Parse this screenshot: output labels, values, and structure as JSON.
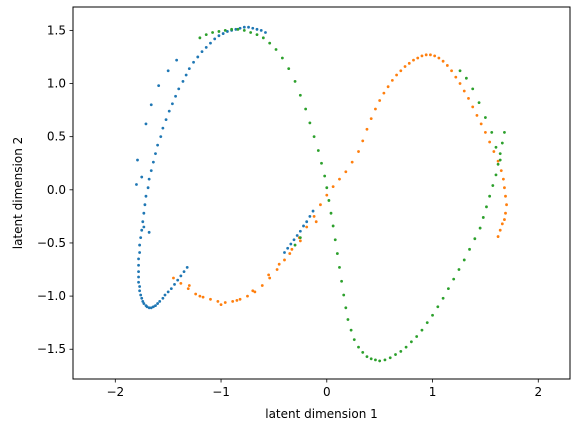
{
  "chart_data": {
    "type": "scatter",
    "title": "",
    "xlabel": "latent dimension 1",
    "ylabel": "latent dimension 2",
    "xlim": [
      -2.4,
      2.3
    ],
    "ylim": [
      -1.78,
      1.72
    ],
    "xticks": [
      -2,
      -1,
      0,
      1,
      2
    ],
    "xtick_labels": [
      "−2",
      "−1",
      "0",
      "1",
      "2"
    ],
    "yticks": [
      -1.5,
      -1.0,
      -0.5,
      0.0,
      0.5,
      1.0,
      1.5
    ],
    "ytick_labels": [
      "−1.5",
      "−1.0",
      "−0.5",
      "0.0",
      "0.5",
      "1.0",
      "1.5"
    ],
    "grid": false,
    "legend": "none",
    "series": [
      {
        "name": "series-blue",
        "color": "#1f77b4",
        "x": [
          -0.58,
          -0.62,
          -0.66,
          -0.7,
          -0.74,
          -0.78,
          -0.82,
          -0.86,
          -0.9,
          -0.94,
          -0.98,
          -1.02,
          -1.06,
          -1.1,
          -1.14,
          -1.18,
          -1.22,
          -1.26,
          -1.3,
          -1.33,
          -1.36,
          -1.4,
          -1.43,
          -1.46,
          -1.49,
          -1.52,
          -1.55,
          -1.57,
          -1.6,
          -1.62,
          -1.64,
          -1.66,
          -1.68,
          -1.69,
          -1.71,
          -1.72,
          -1.73,
          -1.74,
          -1.75,
          -1.76,
          -1.77,
          -1.77,
          -1.78,
          -1.78,
          -1.78,
          -1.78,
          -1.78,
          -1.77,
          -1.77,
          -1.76,
          -1.75,
          -1.74,
          -1.73,
          -1.71,
          -1.7,
          -1.68,
          -1.66,
          -1.64,
          -1.62,
          -1.6,
          -1.58,
          -1.55,
          -1.53,
          -1.5,
          -1.47,
          -1.44,
          -1.41,
          -1.38,
          -1.35,
          -1.32,
          -0.4,
          -0.37,
          -0.34,
          -0.31,
          -0.28,
          -0.25,
          -0.22,
          -0.19,
          -0.16,
          -0.13,
          -1.75,
          -1.79,
          -1.73,
          -1.68,
          -1.8,
          -1.71,
          -1.66,
          -1.59,
          -1.5,
          -1.42
        ],
        "y": [
          1.48,
          1.5,
          1.51,
          1.52,
          1.53,
          1.53,
          1.52,
          1.51,
          1.5,
          1.49,
          1.47,
          1.45,
          1.42,
          1.38,
          1.34,
          1.3,
          1.25,
          1.2,
          1.14,
          1.08,
          1.02,
          0.95,
          0.88,
          0.81,
          0.74,
          0.66,
          0.58,
          0.5,
          0.42,
          0.34,
          0.26,
          0.18,
          0.1,
          0.02,
          -0.06,
          -0.14,
          -0.22,
          -0.3,
          -0.38,
          -0.45,
          -0.52,
          -0.59,
          -0.65,
          -0.71,
          -0.77,
          -0.82,
          -0.87,
          -0.91,
          -0.95,
          -0.99,
          -1.02,
          -1.05,
          -1.07,
          -1.09,
          -1.1,
          -1.11,
          -1.11,
          -1.1,
          -1.09,
          -1.07,
          -1.05,
          -1.02,
          -0.99,
          -0.96,
          -0.93,
          -0.89,
          -0.85,
          -0.81,
          -0.77,
          -0.73,
          -0.59,
          -0.55,
          -0.51,
          -0.47,
          -0.43,
          -0.39,
          -0.34,
          -0.3,
          -0.25,
          -0.2,
          0.12,
          0.28,
          -0.35,
          -0.4,
          0.05,
          0.62,
          0.8,
          0.98,
          1.12,
          1.22
        ]
      },
      {
        "name": "series-orange",
        "color": "#ff7f0e",
        "x": [
          -1.45,
          -1.38,
          -1.31,
          -1.24,
          -1.17,
          -1.1,
          -1.03,
          -0.96,
          -0.89,
          -0.82,
          -0.75,
          -0.68,
          -0.61,
          -0.54,
          -0.47,
          -0.4,
          -0.33,
          -0.26,
          -0.19,
          -0.12,
          -0.06,
          0.0,
          0.06,
          0.12,
          0.18,
          0.24,
          0.3,
          0.34,
          0.38,
          0.42,
          0.46,
          0.5,
          0.54,
          0.58,
          0.62,
          0.66,
          0.7,
          0.74,
          0.78,
          0.82,
          0.86,
          0.9,
          0.94,
          0.98,
          1.02,
          1.06,
          1.1,
          1.14,
          1.18,
          1.22,
          1.26,
          1.3,
          1.34,
          1.38,
          1.42,
          1.46,
          1.5,
          1.54,
          1.58,
          1.62,
          1.65,
          1.67,
          1.68,
          1.69,
          1.7,
          1.69,
          1.68,
          1.66,
          1.64,
          1.62,
          -1.3,
          -1.2,
          -1.0,
          -0.85,
          -0.7,
          -0.55,
          -0.45,
          -0.35,
          -0.25,
          -0.1
        ],
        "y": [
          -0.83,
          -0.88,
          -0.93,
          -0.98,
          -1.01,
          -1.03,
          -1.05,
          -1.06,
          -1.05,
          -1.03,
          -1.0,
          -0.96,
          -0.9,
          -0.83,
          -0.75,
          -0.66,
          -0.56,
          -0.45,
          -0.35,
          -0.25,
          -0.14,
          -0.05,
          0.03,
          0.1,
          0.17,
          0.26,
          0.36,
          0.46,
          0.57,
          0.67,
          0.76,
          0.84,
          0.91,
          0.97,
          1.03,
          1.08,
          1.12,
          1.16,
          1.19,
          1.22,
          1.24,
          1.26,
          1.27,
          1.27,
          1.26,
          1.24,
          1.21,
          1.17,
          1.12,
          1.06,
          1.0,
          0.93,
          0.86,
          0.78,
          0.7,
          0.62,
          0.54,
          0.45,
          0.36,
          0.27,
          0.18,
          0.1,
          0.02,
          -0.06,
          -0.14,
          -0.22,
          -0.28,
          -0.32,
          -0.38,
          -0.44,
          -0.9,
          -1.0,
          -1.08,
          -1.04,
          -0.95,
          -0.8,
          -0.7,
          -0.6,
          -0.48,
          -0.3
        ]
      },
      {
        "name": "series-green",
        "color": "#2ca02c",
        "x": [
          -1.2,
          -1.14,
          -1.08,
          -1.02,
          -0.96,
          -0.9,
          -0.84,
          -0.78,
          -0.72,
          -0.66,
          -0.6,
          -0.54,
          -0.48,
          -0.42,
          -0.36,
          -0.3,
          -0.25,
          -0.2,
          -0.16,
          -0.12,
          -0.08,
          -0.05,
          -0.02,
          0.0,
          0.02,
          0.04,
          0.06,
          0.08,
          0.1,
          0.12,
          0.14,
          0.16,
          0.18,
          0.2,
          0.23,
          0.26,
          0.3,
          0.34,
          0.38,
          0.42,
          0.46,
          0.5,
          0.55,
          0.6,
          0.65,
          0.7,
          0.75,
          0.8,
          0.85,
          0.9,
          0.95,
          1.0,
          1.05,
          1.1,
          1.15,
          1.2,
          1.25,
          1.3,
          1.35,
          1.4,
          1.45,
          1.48,
          1.51,
          1.54,
          1.57,
          1.6,
          1.62,
          1.64,
          1.66,
          1.68,
          1.26,
          1.32,
          1.38,
          1.44,
          1.5,
          1.56,
          1.6,
          1.64,
          -0.3,
          -0.25
        ],
        "y": [
          1.43,
          1.46,
          1.48,
          1.49,
          1.5,
          1.51,
          1.51,
          1.5,
          1.48,
          1.46,
          1.43,
          1.38,
          1.32,
          1.24,
          1.14,
          1.02,
          0.89,
          0.76,
          0.63,
          0.5,
          0.37,
          0.25,
          0.13,
          0.02,
          -0.1,
          -0.22,
          -0.34,
          -0.47,
          -0.6,
          -0.73,
          -0.86,
          -0.99,
          -1.11,
          -1.22,
          -1.32,
          -1.41,
          -1.48,
          -1.53,
          -1.57,
          -1.59,
          -1.6,
          -1.61,
          -1.6,
          -1.58,
          -1.55,
          -1.52,
          -1.48,
          -1.43,
          -1.38,
          -1.32,
          -1.25,
          -1.18,
          -1.1,
          -1.02,
          -0.93,
          -0.84,
          -0.75,
          -0.66,
          -0.56,
          -0.46,
          -0.36,
          -0.26,
          -0.16,
          -0.06,
          0.04,
          0.14,
          0.24,
          0.34,
          0.44,
          0.54,
          1.12,
          1.05,
          0.95,
          0.82,
          0.68,
          0.54,
          0.4,
          0.28,
          -0.52,
          -0.45
        ]
      }
    ]
  }
}
